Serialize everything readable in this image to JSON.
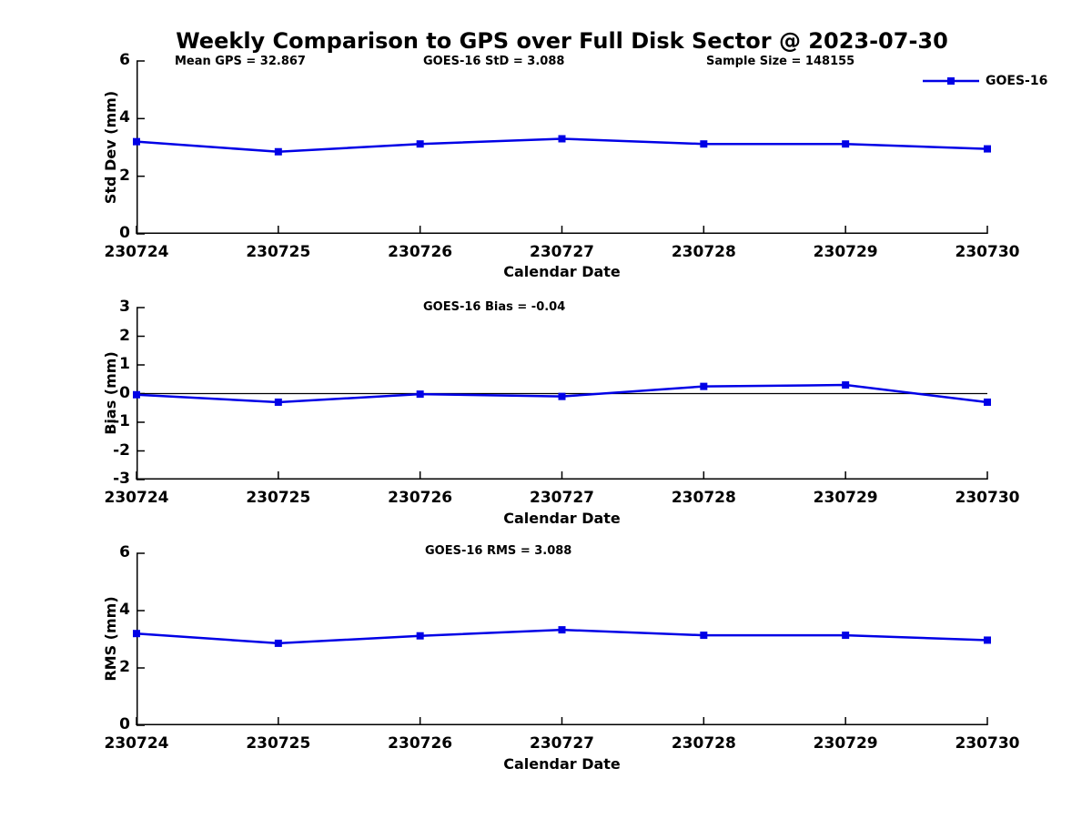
{
  "title": "Weekly Comparison to GPS over Full Disk Sector @ 2023-07-30",
  "top_annotations": {
    "mean_gps": "Mean GPS = 32.867",
    "goes16_std": "GOES-16 StD = 3.088",
    "sample_size": "Sample Size = 148155"
  },
  "legend": {
    "label": "GOES-16"
  },
  "colors": {
    "line": "#0000e6",
    "axis": "#000000",
    "text": "#000000"
  },
  "chart_data": [
    {
      "type": "line",
      "series_name": "GOES-16",
      "title": "",
      "xlabel": "Calendar Date",
      "ylabel": "Std Dev (mm)",
      "categories": [
        "230724",
        "230725",
        "230726",
        "230727",
        "230728",
        "230729",
        "230730"
      ],
      "values": [
        3.2,
        2.85,
        3.12,
        3.3,
        3.12,
        3.12,
        2.95
      ],
      "ylim": [
        0,
        6
      ],
      "yticks": [
        6,
        4,
        2,
        0
      ],
      "zero_line": false,
      "grid": false,
      "legend_position": "top-right",
      "marker": "square"
    },
    {
      "type": "line",
      "series_name": "GOES-16",
      "title": "GOES-16 Bias  = -0.04",
      "xlabel": "Calendar Date",
      "ylabel": "Bias (mm)",
      "categories": [
        "230724",
        "230725",
        "230726",
        "230727",
        "230728",
        "230729",
        "230730"
      ],
      "values": [
        -0.04,
        -0.3,
        -0.02,
        -0.1,
        0.25,
        0.3,
        -0.3
      ],
      "ylim": [
        -3,
        3
      ],
      "yticks": [
        3,
        2,
        1,
        0,
        -1,
        -2,
        -3
      ],
      "zero_line": true,
      "grid": false,
      "marker": "square"
    },
    {
      "type": "line",
      "series_name": "GOES-16",
      "title": "GOES-16 RMS = 3.088",
      "xlabel": "Calendar Date",
      "ylabel": "RMS (mm)",
      "categories": [
        "230724",
        "230725",
        "230726",
        "230727",
        "230728",
        "230729",
        "230730"
      ],
      "values": [
        3.2,
        2.86,
        3.12,
        3.33,
        3.14,
        3.14,
        2.97
      ],
      "ylim": [
        0,
        6
      ],
      "yticks": [
        6,
        4,
        2,
        0
      ],
      "zero_line": false,
      "grid": false,
      "marker": "square"
    }
  ]
}
